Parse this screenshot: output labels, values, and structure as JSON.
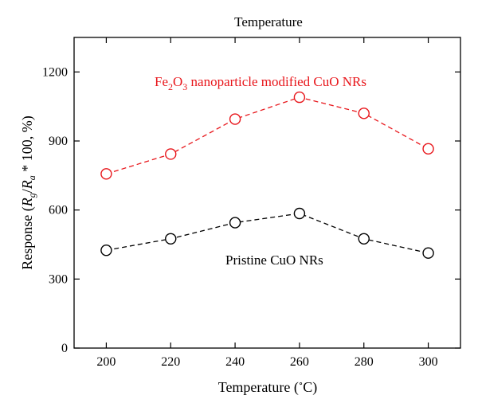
{
  "chart_data": {
    "type": "line",
    "title": "Temperature",
    "xlabel": "Temperature (°C)",
    "ylabel": "Response (Rg/Ra * 100, %)",
    "x": [
      200,
      220,
      240,
      260,
      280,
      300
    ],
    "xlim": [
      190,
      310
    ],
    "ylim": [
      0,
      1350
    ],
    "xticks": [
      200,
      220,
      240,
      260,
      280,
      300
    ],
    "yticks": [
      0,
      300,
      600,
      900,
      1200
    ],
    "grid": false,
    "series": [
      {
        "name": "Fe2O3 nanoparticle modified CuO NRs",
        "color": "#e8161b",
        "marker": "open-circle",
        "line_style": "dashed",
        "values": [
          757,
          843,
          995,
          1090,
          1020,
          866
        ]
      },
      {
        "name": "Pristine CuO NRs",
        "color": "#000000",
        "marker": "open-circle",
        "line_style": "dashed",
        "values": [
          425,
          475,
          545,
          585,
          475,
          413
        ]
      }
    ],
    "annotations": [
      {
        "text": "Fe2O3 nanoparticle modified CuO NRs",
        "series": 0
      },
      {
        "text": "Pristine CuO NRs",
        "series": 1
      }
    ]
  }
}
